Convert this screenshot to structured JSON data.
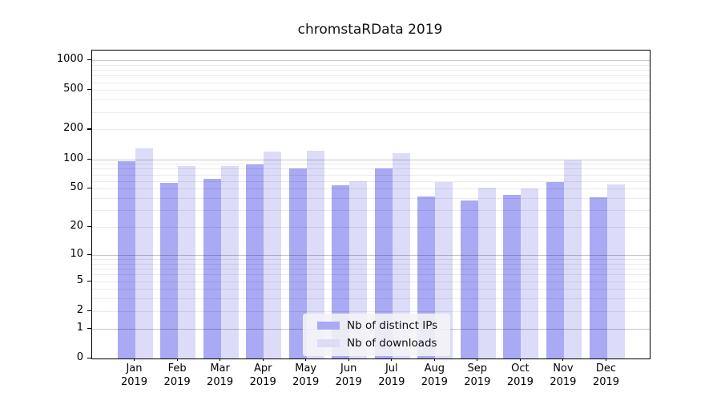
{
  "figure": {
    "background": "#ffffff"
  },
  "chart_data": {
    "type": "bar",
    "title": "chromstaRData 2019",
    "categories": [
      {
        "month": "Jan",
        "year": "2019"
      },
      {
        "month": "Feb",
        "year": "2019"
      },
      {
        "month": "Mar",
        "year": "2019"
      },
      {
        "month": "Apr",
        "year": "2019"
      },
      {
        "month": "May",
        "year": "2019"
      },
      {
        "month": "Jun",
        "year": "2019"
      },
      {
        "month": "Jul",
        "year": "2019"
      },
      {
        "month": "Aug",
        "year": "2019"
      },
      {
        "month": "Sep",
        "year": "2019"
      },
      {
        "month": "Oct",
        "year": "2019"
      },
      {
        "month": "Nov",
        "year": "2019"
      },
      {
        "month": "Dec",
        "year": "2019"
      }
    ],
    "series": [
      {
        "name": "Nb of distinct IPs",
        "color": "#a9a9f4",
        "values": [
          95,
          57,
          63,
          89,
          81,
          54,
          80,
          42,
          38,
          43,
          59,
          41
        ]
      },
      {
        "name": "Nb of downloads",
        "color": "#dcdcf9",
        "values": [
          128,
          85,
          86,
          119,
          121,
          60,
          115,
          58,
          51,
          50,
          98,
          55
        ]
      }
    ],
    "xlabel": "",
    "ylabel": "",
    "yscale": "log1p",
    "ylim": [
      0,
      1250
    ],
    "yticks": [
      0,
      1,
      2,
      5,
      10,
      20,
      50,
      100,
      200,
      500,
      1000
    ],
    "grid": true,
    "gridlines": {
      "major": [
        1,
        10,
        100,
        1000
      ],
      "minor": [
        2,
        3,
        4,
        5,
        6,
        7,
        8,
        9,
        20,
        30,
        40,
        50,
        60,
        70,
        80,
        90,
        200,
        300,
        400,
        500,
        600,
        700,
        800,
        900
      ],
      "major_color": "#c8c8c8",
      "minor_color": "#ececec"
    },
    "legend": {
      "position": "inside-bottom-center",
      "background": "#f4f4f6"
    }
  }
}
